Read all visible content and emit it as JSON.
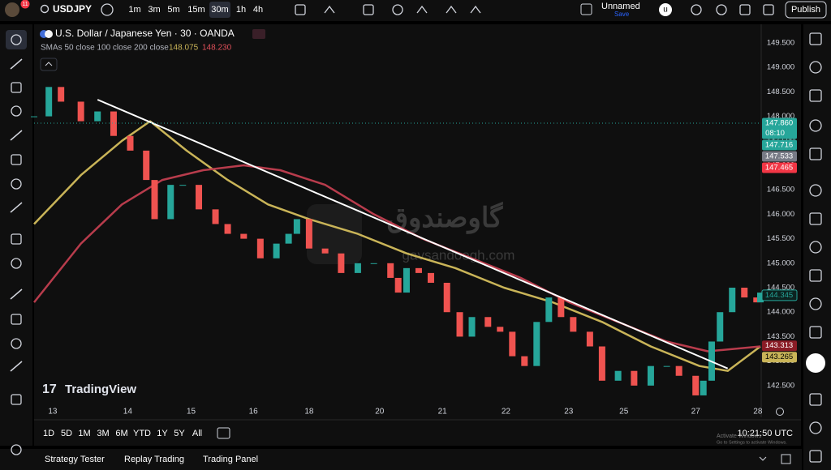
{
  "toolbar": {
    "badge": "11",
    "symbol": "USDJPY",
    "intervals": [
      "1m",
      "3m",
      "5m",
      "15m",
      "30m",
      "1h",
      "4h"
    ],
    "active_interval": 4,
    "layout_name": "Unnamed",
    "save": "Save",
    "user": "u",
    "publish": "Publish"
  },
  "legend": {
    "title": "U.S. Dollar / Japanese Yen · 30 · OANDA",
    "indicator": "SMAs 50 close 100 close 200 close",
    "values": [
      {
        "label": "148.075",
        "color": "#c9b458"
      },
      {
        "label": "148.230",
        "color": "#e0505a"
      }
    ]
  },
  "chart_data": {
    "type": "candlestick",
    "x": [
      -0.29,
      -0.06,
      0.13,
      0.44,
      0.7,
      0.95,
      1.21,
      1.46,
      1.59,
      1.84,
      2.03,
      2.28,
      2.54,
      2.73,
      2.98,
      3.24,
      3.49,
      3.68,
      3.81,
      4,
      4.25,
      4.5,
      4.76,
      5.01,
      5.27,
      5.39,
      5.52,
      5.71,
      5.9,
      6.15,
      6.35,
      6.54,
      6.79,
      6.98,
      7.17,
      7.36,
      7.55,
      7.74,
      7.93,
      8.12,
      8.38,
      8.57,
      8.82,
      9.07,
      9.33,
      9.58,
      9.77,
      10.03,
      10.15,
      10.28,
      10.41,
      10.6,
      10.79,
      10.98,
      11.04
    ],
    "close": [
      148.0,
      148.6,
      148.3,
      147.9,
      148.1,
      147.6,
      147.3,
      146.7,
      145.9,
      146.6,
      146.6,
      146.1,
      145.8,
      145.6,
      145.5,
      145.1,
      145.4,
      145.6,
      145.9,
      145.3,
      145.2,
      144.8,
      145.0,
      145.0,
      144.7,
      144.4,
      144.9,
      144.8,
      144.6,
      144.0,
      143.5,
      143.9,
      143.7,
      143.6,
      143.1,
      142.9,
      143.8,
      144.3,
      143.9,
      143.6,
      143.3,
      142.6,
      142.8,
      142.5,
      142.9,
      142.9,
      142.7,
      142.3,
      142.6,
      143.4,
      144.0,
      144.5,
      144.3,
      144.2,
      144.4
    ],
    "up_color": "#26a69a",
    "down_color": "#ef5350",
    "lines": [
      {
        "color": "#c9b458",
        "x": [
          -0.29,
          0.44,
          1.08,
          1.52,
          2.09,
          2.73,
          3.36,
          4,
          4.76,
          5.52,
          6.28,
          7.04,
          7.8,
          8.57,
          9.33,
          10.09,
          10.53,
          11.04
        ],
        "values": [
          145.8,
          146.8,
          147.5,
          147.9,
          147.3,
          146.7,
          146.2,
          145.9,
          145.6,
          145.2,
          144.9,
          144.5,
          144.2,
          143.8,
          143.3,
          142.9,
          142.8,
          143.3
        ]
      },
      {
        "color": "#b83c4c",
        "x": [
          -0.29,
          0.44,
          1.08,
          1.71,
          2.35,
          2.98,
          3.55,
          4.25,
          5.01,
          5.77,
          6.54,
          7.3,
          8.06,
          8.82,
          9.58,
          10.22,
          11.04
        ],
        "values": [
          144.2,
          145.4,
          146.2,
          146.7,
          146.9,
          147.0,
          146.9,
          146.6,
          146.0,
          145.5,
          145.1,
          144.7,
          144.2,
          143.8,
          143.4,
          143.2,
          143.3
        ]
      }
    ],
    "trendline": {
      "color": "#ffffff",
      "x": [
        0.7,
        10.53
      ],
      "values": [
        148.34,
        142.85
      ]
    },
    "xlim": [
      -0.29,
      11.04
    ],
    "ylim": [
      142.1,
      149.88
    ],
    "grid": false,
    "yticks": [
      {
        "value": 149.5,
        "label": "149.500"
      },
      {
        "value": 149,
        "label": "149.000"
      },
      {
        "value": 148.5,
        "label": "148.500"
      },
      {
        "value": 148,
        "label": "148.000"
      },
      {
        "value": 147.5,
        "label": "147.500"
      },
      {
        "value": 147,
        "label": "147.000"
      },
      {
        "value": 146.5,
        "label": "146.500"
      },
      {
        "value": 146,
        "label": "146.000"
      },
      {
        "value": 145.5,
        "label": "145.500"
      },
      {
        "value": 145,
        "label": "145.000"
      },
      {
        "value": 144.5,
        "label": "144.500"
      },
      {
        "value": 144,
        "label": "144.000"
      },
      {
        "value": 143.5,
        "label": "143.500"
      },
      {
        "value": 143,
        "label": "143.000"
      },
      {
        "value": 142.5,
        "label": "142.500"
      }
    ],
    "xticks": [
      {
        "value": 0,
        "label": "13"
      },
      {
        "value": 1.17,
        "label": "14"
      },
      {
        "value": 2.16,
        "label": "15"
      },
      {
        "value": 3.13,
        "label": "16"
      },
      {
        "value": 4,
        "label": "18"
      },
      {
        "value": 5.1,
        "label": "20"
      },
      {
        "value": 6.08,
        "label": "21"
      },
      {
        "value": 7.07,
        "label": "22"
      },
      {
        "value": 8.05,
        "label": "23"
      },
      {
        "value": 8.91,
        "label": "25"
      },
      {
        "value": 10.03,
        "label": "27"
      },
      {
        "value": 11,
        "label": "28"
      }
    ],
    "price_labels": [
      {
        "value": 147.86,
        "label": "147.860",
        "sub": "08:10",
        "color": "#26a69a",
        "text_color": "#ffffff"
      },
      {
        "value": 147.716,
        "label": "147.716",
        "color": "#26a69a",
        "text_color": "#ffffff"
      },
      {
        "value": 147.533,
        "label": "147.533",
        "color": "#787b86",
        "text_color": "#ffffff"
      },
      {
        "value": 147.465,
        "label": "147.465",
        "color": "#f23645",
        "text_color": "#ffffff"
      },
      {
        "value": 144.345,
        "label": "144.345",
        "color": "#0c2320",
        "text_color": "#26a69a"
      },
      {
        "value": 143.313,
        "label": "143.313",
        "color": "#8a1c26",
        "text_color": "#ffffff"
      },
      {
        "value": 143.265,
        "label": "143.265",
        "color": "#c9b458",
        "text_color": "#000000"
      }
    ]
  },
  "watermark": {
    "brand": "TradingView",
    "site_name": "گاوصندوق",
    "site_url": "gavsandoogh.com"
  },
  "range_buttons": [
    "1D",
    "5D",
    "1M",
    "3M",
    "6M",
    "YTD",
    "1Y",
    "5Y",
    "All"
  ],
  "clock": "10:21:50 UTC",
  "os_notice": {
    "title": "Activate Windows",
    "text": "Go to Settings to activate Windows."
  },
  "bottom_tabs": [
    "Strategy Tester",
    "Replay Trading",
    "Trading Panel"
  ]
}
